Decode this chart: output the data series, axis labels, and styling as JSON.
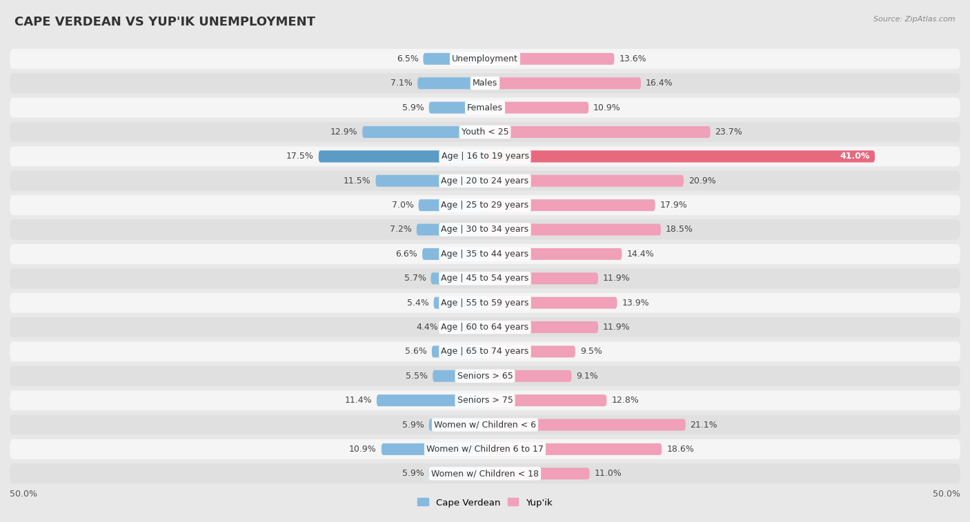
{
  "title": "CAPE VERDEAN VS YUP'IK UNEMPLOYMENT",
  "source": "Source: ZipAtlas.com",
  "categories": [
    "Unemployment",
    "Males",
    "Females",
    "Youth < 25",
    "Age | 16 to 19 years",
    "Age | 20 to 24 years",
    "Age | 25 to 29 years",
    "Age | 30 to 34 years",
    "Age | 35 to 44 years",
    "Age | 45 to 54 years",
    "Age | 55 to 59 years",
    "Age | 60 to 64 years",
    "Age | 65 to 74 years",
    "Seniors > 65",
    "Seniors > 75",
    "Women w/ Children < 6",
    "Women w/ Children 6 to 17",
    "Women w/ Children < 18"
  ],
  "cape_verdean": [
    6.5,
    7.1,
    5.9,
    12.9,
    17.5,
    11.5,
    7.0,
    7.2,
    6.6,
    5.7,
    5.4,
    4.4,
    5.6,
    5.5,
    11.4,
    5.9,
    10.9,
    5.9
  ],
  "yupik": [
    13.6,
    16.4,
    10.9,
    23.7,
    41.0,
    20.9,
    17.9,
    18.5,
    14.4,
    11.9,
    13.9,
    11.9,
    9.5,
    9.1,
    12.8,
    21.1,
    18.6,
    11.0
  ],
  "cv_color": "#85bade",
  "cv_color_dark": "#5a9cc5",
  "yupik_color": "#f0a0b8",
  "yupik_color_dark": "#e8687e",
  "axis_max": 50.0,
  "background_color": "#e8e8e8",
  "row_bg_light": "#f5f5f5",
  "row_bg_dark": "#e0e0e0",
  "title_fontsize": 13,
  "label_fontsize": 9,
  "value_fontsize": 9
}
